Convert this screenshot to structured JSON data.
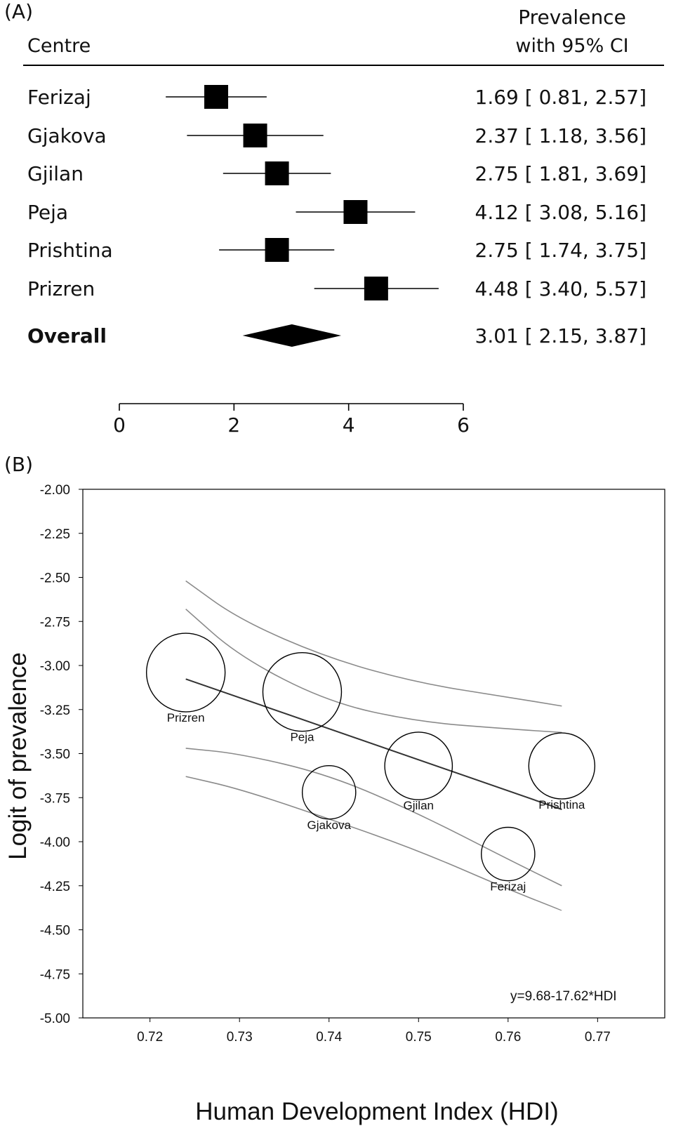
{
  "panel_a": {
    "label": "(A)",
    "col_centre": "Centre",
    "col_prev_line1": "Prevalence",
    "col_prev_line2": "with 95% CI"
  },
  "panel_b": {
    "label": "(B)",
    "equation": "y=9.68-17.62*HDI"
  },
  "chart_data": [
    {
      "type": "forest",
      "x_ticks": [
        0,
        2,
        4,
        6
      ],
      "xlim": [
        0,
        6
      ],
      "rows": [
        {
          "name": "Ferizaj",
          "estimate": 1.69,
          "lower": 0.81,
          "upper": 2.57,
          "text": "1.69 [ 0.81,  2.57]"
        },
        {
          "name": "Gjakova",
          "estimate": 2.37,
          "lower": 1.18,
          "upper": 3.56,
          "text": "2.37 [ 1.18,  3.56]"
        },
        {
          "name": "Gjilan",
          "estimate": 2.75,
          "lower": 1.81,
          "upper": 3.69,
          "text": "2.75 [ 1.81,  3.69]"
        },
        {
          "name": "Peja",
          "estimate": 4.12,
          "lower": 3.08,
          "upper": 5.16,
          "text": "4.12 [ 3.08,  5.16]"
        },
        {
          "name": "Prishtina",
          "estimate": 2.75,
          "lower": 1.74,
          "upper": 3.75,
          "text": "2.75 [ 1.74,  3.75]"
        },
        {
          "name": "Prizren",
          "estimate": 4.48,
          "lower": 3.4,
          "upper": 5.57,
          "text": "4.48 [ 3.40,  5.57]"
        }
      ],
      "overall": {
        "name": "Overall",
        "estimate": 3.01,
        "lower": 2.15,
        "upper": 3.87,
        "text": "3.01 [ 2.15,  3.87]"
      }
    },
    {
      "type": "scatter",
      "xlabel": "Human Development Index (HDI)",
      "ylabel": "Logit of prevalence",
      "xlim": [
        0.7125,
        0.7775
      ],
      "ylim": [
        -5.0,
        -2.0
      ],
      "x_ticks": [
        "0.72",
        "0.73",
        "0.74",
        "0.75",
        "0.76",
        "0.77"
      ],
      "y_ticks": [
        "-2.00",
        "-2.25",
        "-2.50",
        "-2.75",
        "-3.00",
        "-3.25",
        "-3.50",
        "-3.75",
        "-4.00",
        "-4.25",
        "-4.50",
        "-4.75",
        "-5.00"
      ],
      "points": [
        {
          "label": "Prizren",
          "x": 0.724,
          "y": -3.04,
          "weight": 1.0
        },
        {
          "label": "Peja",
          "x": 0.737,
          "y": -3.15,
          "weight": 1.0
        },
        {
          "label": "Gjakova",
          "x": 0.74,
          "y": -3.72,
          "weight": 0.68
        },
        {
          "label": "Gjilan",
          "x": 0.75,
          "y": -3.57,
          "weight": 0.86
        },
        {
          "label": "Prishtina",
          "x": 0.766,
          "y": -3.57,
          "weight": 0.84
        },
        {
          "label": "Ferizaj",
          "x": 0.76,
          "y": -4.07,
          "weight": 0.68
        }
      ],
      "fit": {
        "intercept": 9.68,
        "slope": -17.62,
        "x_range": [
          0.724,
          0.766
        ]
      },
      "bands": [
        {
          "x": [
            0.724,
            0.73,
            0.74,
            0.75,
            0.76,
            0.766
          ],
          "y": [
            -2.52,
            -2.74,
            -2.96,
            -3.1,
            -3.18,
            -3.23
          ]
        },
        {
          "x": [
            0.724,
            0.73,
            0.74,
            0.75,
            0.76,
            0.766
          ],
          "y": [
            -2.68,
            -2.95,
            -3.21,
            -3.32,
            -3.36,
            -3.38
          ]
        },
        {
          "x": [
            0.724,
            0.73,
            0.74,
            0.75,
            0.76,
            0.766
          ],
          "y": [
            -3.47,
            -3.5,
            -3.62,
            -3.84,
            -4.1,
            -4.25
          ]
        },
        {
          "x": [
            0.724,
            0.73,
            0.74,
            0.75,
            0.76,
            0.766
          ],
          "y": [
            -3.63,
            -3.7,
            -3.87,
            -4.05,
            -4.27,
            -4.39
          ]
        }
      ]
    }
  ]
}
